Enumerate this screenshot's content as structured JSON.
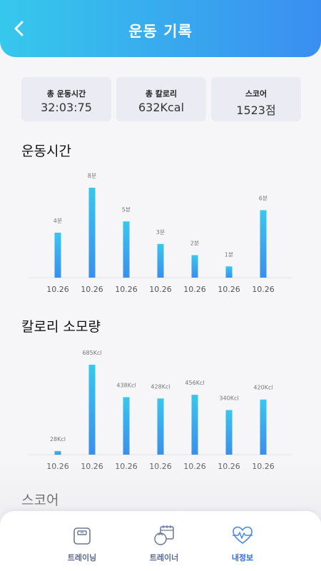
{
  "header": {
    "title": "운동 기록"
  },
  "summary": [
    {
      "label": "총 운동시간",
      "value": "32:03:75"
    },
    {
      "label": "총 칼로리",
      "value": "632Kcal"
    },
    {
      "label": "스코어",
      "value": "1523점"
    }
  ],
  "sections": {
    "time_title": "운동시간",
    "calorie_title": "칼로리 소모량",
    "score_title": "스코어"
  },
  "colors": {
    "accent_start": "#36c8ec",
    "accent_end": "#3a8ef0",
    "tab_active": "#2d6ee0"
  },
  "chart_data": [
    {
      "type": "bar",
      "title": "운동시간",
      "categories": [
        "10.26",
        "10.26",
        "10.26",
        "10.26",
        "10.26",
        "10.26",
        "10.26"
      ],
      "values": [
        4,
        8,
        5,
        3,
        2,
        1,
        6
      ],
      "labels": [
        "4분",
        "8분",
        "5분",
        "3분",
        "2분",
        "1분",
        "6분"
      ],
      "ylim": [
        0,
        8
      ],
      "grid": false
    },
    {
      "type": "bar",
      "title": "칼로리 소모량",
      "categories": [
        "10.26",
        "10.26",
        "10.26",
        "10.26",
        "10.26",
        "10.26",
        "10.26"
      ],
      "values": [
        28,
        685,
        438,
        428,
        456,
        340,
        420
      ],
      "labels": [
        "28Kcl",
        "685Kcl",
        "438Kcl",
        "428Kcl",
        "456Kcl",
        "340Kcl",
        "420Kcl"
      ],
      "ylim": [
        0,
        685
      ],
      "grid": false
    }
  ],
  "tabs": [
    {
      "label": "트레이닝",
      "icon": "scale-icon",
      "active": false
    },
    {
      "label": "트레이너",
      "icon": "calendar-weight-icon",
      "active": false
    },
    {
      "label": "내정보",
      "icon": "heart-pulse-icon",
      "active": true
    }
  ]
}
